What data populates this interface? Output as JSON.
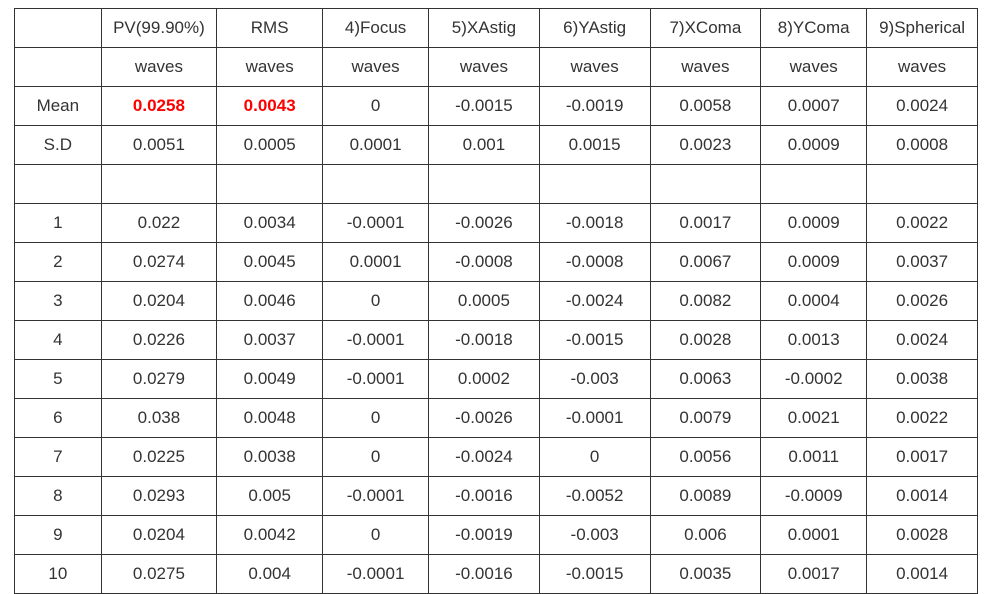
{
  "table": {
    "border_color": "#333333",
    "text_color": "#333333",
    "highlight_color": "#ff0000",
    "background": "#ffffff",
    "font_size": 17,
    "col_classes": [
      "c0",
      "c1",
      "c2",
      "c3",
      "c4",
      "c5",
      "c6",
      "c7",
      "c8"
    ],
    "headers": [
      "",
      "PV(99.90%)",
      "RMS",
      "4)Focus",
      "5)XAstig",
      "6)YAstig",
      "7)XComa",
      "8)YComa",
      "9)Spherical"
    ],
    "units": [
      "",
      "waves",
      "waves",
      "waves",
      "waves",
      "waves",
      "waves",
      "waves",
      "waves"
    ],
    "summary": [
      {
        "label": "Mean",
        "values": [
          "0.0258",
          "0.0043",
          "0",
          "-0.0015",
          "-0.0019",
          "0.0058",
          "0.0007",
          "0.0024"
        ],
        "highlight_indices": [
          0,
          1
        ]
      },
      {
        "label": "S.D",
        "values": [
          "0.0051",
          "0.0005",
          "0.0001",
          "0.001",
          "0.0015",
          "0.0023",
          "0.0009",
          "0.0008"
        ],
        "highlight_indices": []
      }
    ],
    "blank_row": true,
    "data_rows": [
      {
        "label": "1",
        "values": [
          "0.022",
          "0.0034",
          "-0.0001",
          "-0.0026",
          "-0.0018",
          "0.0017",
          "0.0009",
          "0.0022"
        ]
      },
      {
        "label": "2",
        "values": [
          "0.0274",
          "0.0045",
          "0.0001",
          "-0.0008",
          "-0.0008",
          "0.0067",
          "0.0009",
          "0.0037"
        ]
      },
      {
        "label": "3",
        "values": [
          "0.0204",
          "0.0046",
          "0",
          "0.0005",
          "-0.0024",
          "0.0082",
          "0.0004",
          "0.0026"
        ]
      },
      {
        "label": "4",
        "values": [
          "0.0226",
          "0.0037",
          "-0.0001",
          "-0.0018",
          "-0.0015",
          "0.0028",
          "0.0013",
          "0.0024"
        ]
      },
      {
        "label": "5",
        "values": [
          "0.0279",
          "0.0049",
          "-0.0001",
          "0.0002",
          "-0.003",
          "0.0063",
          "-0.0002",
          "0.0038"
        ]
      },
      {
        "label": "6",
        "values": [
          "0.038",
          "0.0048",
          "0",
          "-0.0026",
          "-0.0001",
          "0.0079",
          "0.0021",
          "0.0022"
        ]
      },
      {
        "label": "7",
        "values": [
          "0.0225",
          "0.0038",
          "0",
          "-0.0024",
          "0",
          "0.0056",
          "0.0011",
          "0.0017"
        ]
      },
      {
        "label": "8",
        "values": [
          "0.0293",
          "0.005",
          "-0.0001",
          "-0.0016",
          "-0.0052",
          "0.0089",
          "-0.0009",
          "0.0014"
        ]
      },
      {
        "label": "9",
        "values": [
          "0.0204",
          "0.0042",
          "0",
          "-0.0019",
          "-0.003",
          "0.006",
          "0.0001",
          "0.0028"
        ]
      },
      {
        "label": "10",
        "values": [
          "0.0275",
          "0.004",
          "-0.0001",
          "-0.0016",
          "-0.0015",
          "0.0035",
          "0.0017",
          "0.0014"
        ]
      }
    ]
  }
}
